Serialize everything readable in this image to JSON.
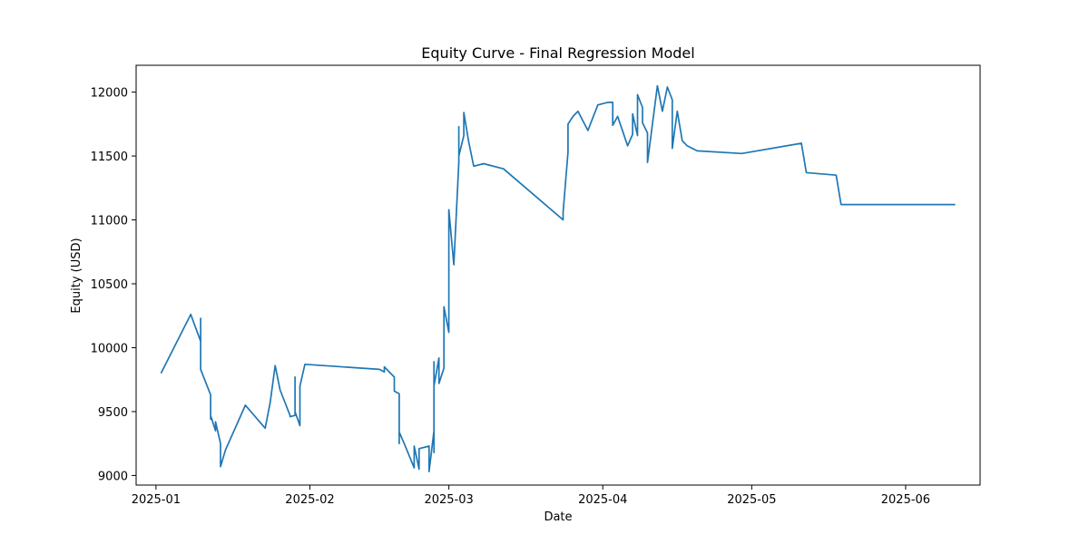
{
  "chart_data": {
    "type": "line",
    "title": "Equity Curve - Final Regression Model",
    "xlabel": "Date",
    "ylabel": "Equity (USD)",
    "x_ticks": [
      "2025-01",
      "2025-02",
      "2025-03",
      "2025-04",
      "2025-05",
      "2025-06"
    ],
    "y_ticks": [
      9000,
      9500,
      10000,
      10500,
      11000,
      11500,
      12000
    ],
    "xlim": [
      "2024-12-28",
      "2025-06-16"
    ],
    "ylim": [
      8925,
      12210
    ],
    "grid": false,
    "legend": "none",
    "line_color": "#1f77b4",
    "series": [
      {
        "x": [
          "2025-01-02",
          "2025-01-08",
          "2025-01-10",
          "2025-01-10",
          "2025-01-10",
          "2025-01-12",
          "2025-01-12",
          "2025-01-12",
          "2025-01-13",
          "2025-01-13",
          "2025-01-14",
          "2025-01-14",
          "2025-01-14",
          "2025-01-15",
          "2025-01-19",
          "2025-01-23",
          "2025-01-24",
          "2025-01-25",
          "2025-01-26",
          "2025-01-28",
          "2025-01-28",
          "2025-01-29",
          "2025-01-29",
          "2025-01-29",
          "2025-01-30",
          "2025-01-30",
          "2025-01-31",
          "2025-02-15",
          "2025-02-16",
          "2025-02-16",
          "2025-02-18",
          "2025-02-18",
          "2025-02-19",
          "2025-02-19",
          "2025-02-19",
          "2025-02-20",
          "2025-02-22",
          "2025-02-22",
          "2025-02-23",
          "2025-02-23",
          "2025-02-23",
          "2025-02-25",
          "2025-02-25",
          "2025-02-25",
          "2025-02-26",
          "2025-02-26",
          "2025-02-26",
          "2025-02-26",
          "2025-02-27",
          "2025-02-27",
          "2025-02-28",
          "2025-02-28",
          "2025-03-01",
          "2025-03-01",
          "2025-03-02",
          "2025-03-03",
          "2025-03-03",
          "2025-03-03",
          "2025-03-04",
          "2025-03-04",
          "2025-03-05",
          "2025-03-06",
          "2025-03-08",
          "2025-03-12",
          "2025-03-24",
          "2025-03-24",
          "2025-03-25",
          "2025-03-25",
          "2025-03-25",
          "2025-03-26",
          "2025-03-27",
          "2025-03-29",
          "2025-03-31",
          "2025-04-02",
          "2025-04-03",
          "2025-04-03",
          "2025-04-04",
          "2025-04-06",
          "2025-04-07",
          "2025-04-07",
          "2025-04-08",
          "2025-04-08",
          "2025-04-09",
          "2025-04-09",
          "2025-04-10",
          "2025-04-10",
          "2025-04-12",
          "2025-04-13",
          "2025-04-14",
          "2025-04-15",
          "2025-04-15",
          "2025-04-16",
          "2025-04-17",
          "2025-04-18",
          "2025-04-20",
          "2025-04-29",
          "2025-05-11",
          "2025-05-12",
          "2025-05-18",
          "2025-05-19",
          "2025-06-10",
          "2025-06-11"
        ],
        "y": [
          9800,
          10260,
          10050,
          10230,
          9830,
          9630,
          9440,
          9470,
          9350,
          9420,
          9250,
          9230,
          9070,
          9200,
          9550,
          9370,
          9570,
          9860,
          9670,
          9470,
          9460,
          9470,
          9770,
          9500,
          9390,
          9700,
          9870,
          9830,
          9810,
          9850,
          9770,
          9660,
          9640,
          9250,
          9340,
          9250,
          9060,
          9230,
          9050,
          9180,
          9210,
          9230,
          9160,
          9030,
          9350,
          9180,
          9890,
          9700,
          9920,
          9720,
          9840,
          10320,
          10120,
          11080,
          10650,
          11450,
          11730,
          11500,
          11660,
          11840,
          11610,
          11420,
          11440,
          11400,
          11000,
          11060,
          11530,
          11720,
          11750,
          11810,
          11850,
          11700,
          11900,
          11920,
          11920,
          11740,
          11810,
          11580,
          11670,
          11830,
          11660,
          11980,
          11880,
          11760,
          11680,
          11450,
          12050,
          11850,
          12040,
          11940,
          11560,
          11850,
          11620,
          11580,
          11540,
          11520,
          11600,
          11370,
          11350,
          11120,
          11120,
          11120
        ]
      }
    ]
  }
}
